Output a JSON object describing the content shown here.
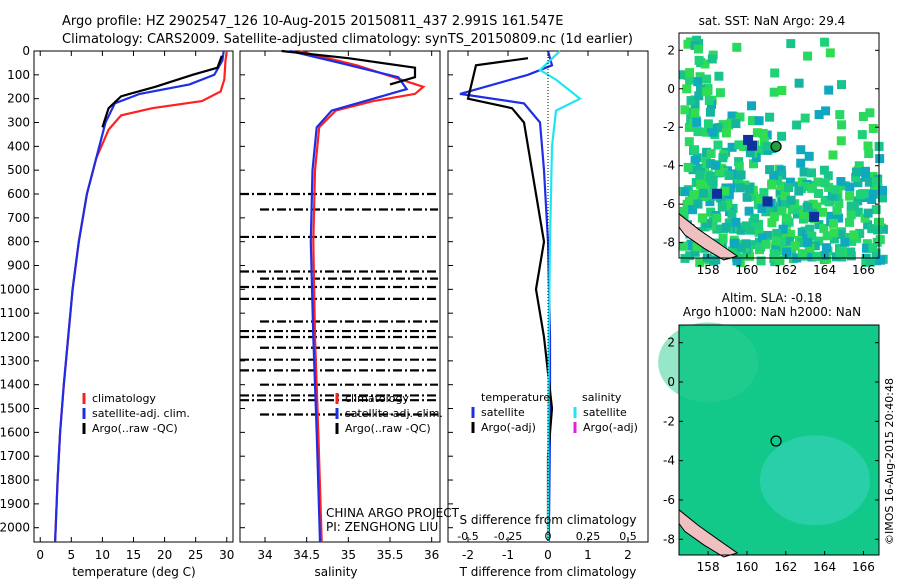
{
  "header": {
    "line1": "Argo profile: HZ 2902547_126 10-Aug-2015 20150811_437 2.991S 161.547E",
    "line2": "Climatology: CARS2009. Satellite-adjusted climatology: synTS_20150809.nc (1d earlier)"
  },
  "credit": "©IMOS 16-Aug-2015 20:40:48",
  "project": {
    "line1": "CHINA ARGO PROJECT",
    "line2": "PI: ZENGHONG LIU"
  },
  "colors": {
    "climatology": "#ff2020",
    "satellite": "#1e2ee6",
    "argo": "#000000",
    "satellite_salinity": "#1ee6f0",
    "argo_salinity": "#e020e0",
    "map_ocean": "#00c878"
  },
  "chart_data": [
    {
      "type": "line",
      "name": "temperature",
      "xlabel": "temperature (deg C)",
      "ylabel": "",
      "xlim": [
        -1,
        31
      ],
      "ylim": [
        2060,
        0
      ],
      "xticks": [
        0,
        5,
        10,
        15,
        20,
        25,
        30
      ],
      "yticks": [
        0,
        100,
        200,
        300,
        400,
        500,
        600,
        700,
        800,
        900,
        1000,
        1100,
        1200,
        1300,
        1400,
        1500,
        1600,
        1700,
        1800,
        1900,
        2000
      ],
      "legend": [
        "climatology",
        "satellite-adj. clim.",
        "Argo(..raw -QC)"
      ],
      "legend_location": "lower-left",
      "series": [
        {
          "name": "climatology",
          "color": "#ff2020",
          "points": [
            [
              30,
              0
            ],
            [
              29.8,
              40
            ],
            [
              29.6,
              120
            ],
            [
              29,
              170
            ],
            [
              26,
              210
            ],
            [
              18,
              240
            ],
            [
              13,
              270
            ],
            [
              11,
              330
            ],
            [
              9,
              450
            ],
            [
              7.5,
              600
            ],
            [
              6.2,
              800
            ],
            [
              5.2,
              1000
            ],
            [
              4.5,
              1200
            ],
            [
              3.8,
              1400
            ],
            [
              3.2,
              1600
            ],
            [
              2.8,
              1800
            ],
            [
              2.4,
              2060
            ]
          ]
        },
        {
          "name": "satellite-adj. clim.",
          "color": "#1e2ee6",
          "points": [
            [
              29.5,
              0
            ],
            [
              29.3,
              40
            ],
            [
              28,
              100
            ],
            [
              24,
              140
            ],
            [
              16,
              180
            ],
            [
              12,
              220
            ],
            [
              10.5,
              300
            ],
            [
              9,
              450
            ],
            [
              7.5,
              600
            ],
            [
              6.2,
              800
            ],
            [
              5.2,
              1000
            ],
            [
              4.5,
              1200
            ],
            [
              3.8,
              1400
            ],
            [
              3.2,
              1600
            ],
            [
              2.8,
              1800
            ],
            [
              2.4,
              2060
            ]
          ]
        },
        {
          "name": "Argo(..raw -QC)",
          "color": "#000000",
          "points": [
            [
              29.2,
              20
            ],
            [
              28.5,
              70
            ],
            [
              24.5,
              100
            ],
            [
              18.5,
              150
            ],
            [
              13,
              190
            ],
            [
              11,
              240
            ],
            [
              10,
              320
            ]
          ]
        }
      ]
    },
    {
      "type": "line",
      "name": "salinity",
      "xlabel": "salinity",
      "ylabel": "",
      "xlim": [
        33.7,
        36.1
      ],
      "ylim": [
        2060,
        0
      ],
      "xticks": [
        34,
        34.5,
        35,
        35.5,
        36
      ],
      "legend": [
        "climatology",
        "satellite-adj. clim.",
        "Argo(..raw -QC)"
      ],
      "legend_location": "lower-center",
      "series": [
        {
          "name": "climatology",
          "color": "#ff2020",
          "points": [
            [
              34.4,
              0
            ],
            [
              35.1,
              60
            ],
            [
              35.9,
              150
            ],
            [
              35.8,
              180
            ],
            [
              35.3,
              210
            ],
            [
              34.85,
              250
            ],
            [
              34.65,
              320
            ],
            [
              34.6,
              500
            ],
            [
              34.58,
              800
            ],
            [
              34.6,
              1200
            ],
            [
              34.64,
              1600
            ],
            [
              34.68,
              2060
            ]
          ]
        },
        {
          "name": "satellite-adj. clim.",
          "color": "#1e2ee6",
          "points": [
            [
              34.3,
              0
            ],
            [
              34.9,
              50
            ],
            [
              35.6,
              110
            ],
            [
              35.7,
              160
            ],
            [
              35.3,
              200
            ],
            [
              34.8,
              250
            ],
            [
              34.62,
              320
            ],
            [
              34.57,
              500
            ],
            [
              34.55,
              800
            ],
            [
              34.58,
              1200
            ],
            [
              34.62,
              1600
            ],
            [
              34.66,
              2060
            ]
          ]
        },
        {
          "name": "Argo(..raw -QC)",
          "color": "#000000",
          "points": [
            [
              34.2,
              0
            ],
            [
              35,
              30
            ],
            [
              35.8,
              70
            ],
            [
              35.8,
              110
            ],
            [
              35.5,
              140
            ]
          ]
        }
      ],
      "argo_dashed_depths": [
        600,
        665,
        780,
        925,
        955,
        990,
        1040,
        1135,
        1175,
        1200,
        1245,
        1295,
        1340,
        1400,
        1445,
        1465,
        1525
      ]
    },
    {
      "type": "line",
      "name": "difference",
      "xlabel": "T difference from climatology",
      "title": "S difference from climatology",
      "xlim": [
        -2.5,
        2.5
      ],
      "ylim": [
        2060,
        0
      ],
      "xticks": [
        -2,
        -1,
        0,
        1,
        2
      ],
      "top_ticks": [
        -0.5,
        -0.25,
        0,
        0.25,
        0.5
      ],
      "legend_temperature_heading": "temperature",
      "legend_salinity_heading": "salinity",
      "legend": [
        "satellite",
        "Argo(-adj)",
        "satellite",
        "Argo(-adj)"
      ],
      "series": [
        {
          "name": "satellite",
          "color": "#1e2ee6",
          "points": [
            [
              0,
              0
            ],
            [
              0.1,
              60
            ],
            [
              -0.5,
              100
            ],
            [
              -2.2,
              180
            ],
            [
              -0.6,
              220
            ],
            [
              -0.2,
              300
            ],
            [
              -0.1,
              500
            ],
            [
              0,
              800
            ],
            [
              0.05,
              1200
            ],
            [
              0.05,
              1600
            ],
            [
              0.02,
              2060
            ]
          ]
        },
        {
          "name": "Argo(-adj)",
          "color": "#000000",
          "points": [
            [
              -0.5,
              30
            ],
            [
              -1.8,
              60
            ],
            [
              -2.0,
              200
            ],
            [
              -0.9,
              240
            ],
            [
              -0.6,
              300
            ],
            [
              -0.4,
              500
            ],
            [
              -0.1,
              800
            ],
            [
              -0.3,
              1000
            ],
            [
              -0.1,
              1200
            ],
            [
              0.1,
              1500
            ],
            [
              0,
              1700
            ],
            [
              0,
              2000
            ]
          ]
        },
        {
          "name": "satellite",
          "color": "#1ee6f0",
          "points": [
            [
              0.3,
              0
            ],
            [
              -0.2,
              80
            ],
            [
              0.2,
              120
            ],
            [
              0.8,
              200
            ],
            [
              0.2,
              250
            ],
            [
              0.1,
              400
            ],
            [
              0.05,
              800
            ],
            [
              0.02,
              1200
            ],
            [
              0,
              2060
            ]
          ]
        }
      ]
    },
    {
      "type": "heatmap",
      "name": "sat-sst-map",
      "title": "sat. SST: NaN Argo: 29.4",
      "xticks": [
        158,
        160,
        162,
        164,
        166
      ],
      "yticks": [
        2,
        0,
        -2,
        -4,
        -6,
        -8
      ],
      "xlim": [
        156.5,
        166.8
      ],
      "ylim": [
        -8.8,
        2.9
      ],
      "marker": [
        161.5,
        -3.0
      ]
    },
    {
      "type": "heatmap",
      "name": "altim-map",
      "title_line1": "Altim. SLA: -0.18",
      "title_line2": "Argo h1000: NaN h2000: NaN",
      "xticks": [
        158,
        160,
        162,
        164,
        166
      ],
      "yticks": [
        2,
        0,
        -2,
        -4,
        -6,
        -8
      ],
      "xlim": [
        156.5,
        166.8
      ],
      "ylim": [
        -8.8,
        2.9
      ],
      "marker": [
        161.5,
        -3.0
      ]
    }
  ]
}
